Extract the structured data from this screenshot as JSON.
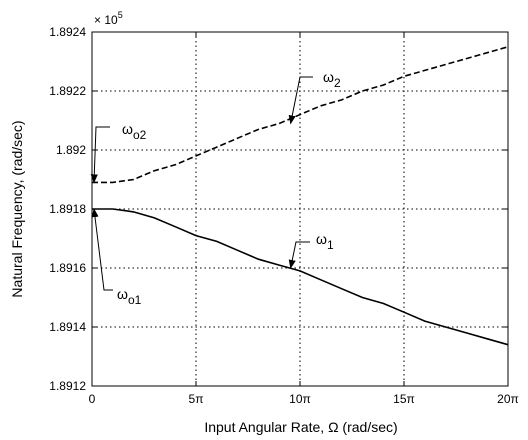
{
  "chart_data": {
    "type": "line",
    "title": "",
    "xlabel": "Input Angular Rate, Ω (rad/sec)",
    "ylabel": "Natural Frequency, (rad/sec)",
    "y_multiplier_label": "× 10",
    "y_multiplier_exponent": "5",
    "xlim": [
      0,
      62.832
    ],
    "ylim": [
      1.8912,
      1.8924
    ],
    "x_ticks": [
      {
        "value": 0,
        "label": "0"
      },
      {
        "value": 15.708,
        "label": "5π"
      },
      {
        "value": 31.416,
        "label": "10π"
      },
      {
        "value": 47.124,
        "label": "15π"
      },
      {
        "value": 62.832,
        "label": "20π"
      }
    ],
    "y_ticks": [
      {
        "value": 1.8912,
        "label": "1.8912"
      },
      {
        "value": 1.8914,
        "label": "1.8914"
      },
      {
        "value": 1.8916,
        "label": "1.8916"
      },
      {
        "value": 1.8918,
        "label": "1.8918"
      },
      {
        "value": 1.892,
        "label": "1.892"
      },
      {
        "value": 1.8922,
        "label": "1.8922"
      },
      {
        "value": 1.8924,
        "label": "1.8924"
      }
    ],
    "grid": true,
    "series": [
      {
        "name": "ω2",
        "style": "dashed",
        "color": "#000000",
        "x": [
          0,
          3.14,
          6.28,
          9.42,
          12.57,
          15.71,
          18.85,
          21.99,
          25.13,
          28.27,
          31.42,
          34.56,
          37.7,
          40.84,
          43.98,
          47.12,
          50.27,
          53.41,
          56.55,
          59.69,
          62.83
        ],
        "y": [
          1.89189,
          1.89189,
          1.8919,
          1.89193,
          1.89195,
          1.89198,
          1.89201,
          1.89204,
          1.89207,
          1.89209,
          1.89212,
          1.89215,
          1.89217,
          1.8922,
          1.89222,
          1.89225,
          1.89227,
          1.89229,
          1.89231,
          1.89233,
          1.89235
        ]
      },
      {
        "name": "ω1",
        "style": "solid",
        "color": "#000000",
        "x": [
          0,
          3.14,
          6.28,
          9.42,
          12.57,
          15.71,
          18.85,
          21.99,
          25.13,
          28.27,
          31.42,
          34.56,
          37.7,
          40.84,
          43.98,
          47.12,
          50.27,
          53.41,
          56.55,
          59.69,
          62.83
        ],
        "y": [
          1.8918,
          1.8918,
          1.89179,
          1.89177,
          1.89174,
          1.89171,
          1.89169,
          1.89166,
          1.89163,
          1.89161,
          1.89159,
          1.89156,
          1.89153,
          1.8915,
          1.89148,
          1.89145,
          1.89142,
          1.8914,
          1.89138,
          1.89136,
          1.89134
        ]
      }
    ],
    "annotations": [
      {
        "main": "ω",
        "sub": "2",
        "arrow_to": [
          30,
          1.89209
        ]
      },
      {
        "main": "ω",
        "sub": "o2",
        "arrow_to": [
          0,
          1.89189
        ]
      },
      {
        "main": "ω",
        "sub": "1",
        "arrow_to": [
          30,
          1.8916
        ]
      },
      {
        "main": "ω",
        "sub": "o1",
        "arrow_to": [
          0,
          1.8918
        ]
      }
    ]
  }
}
